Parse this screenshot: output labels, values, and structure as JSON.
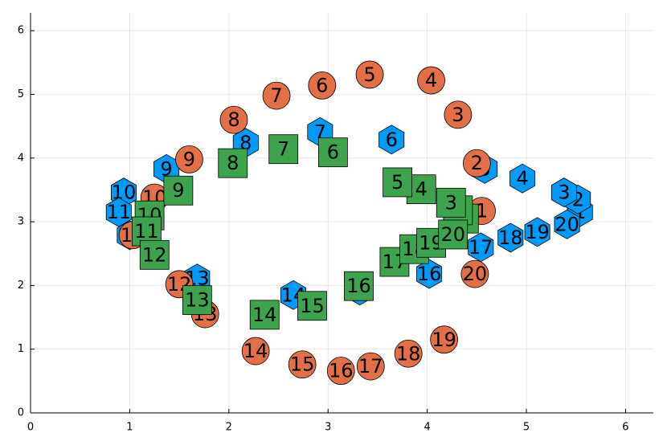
{
  "chart_data": {
    "type": "scatter",
    "xlim": [
      0,
      6.28
    ],
    "ylim": [
      0,
      6.28
    ],
    "xticks": [
      0,
      1,
      2,
      3,
      4,
      5,
      6
    ],
    "yticks": [
      0,
      1,
      2,
      3,
      4,
      5,
      6
    ],
    "grid": true,
    "labels": [
      "1",
      "2",
      "3",
      "4",
      "5",
      "6",
      "7",
      "8",
      "9",
      "10",
      "11",
      "12",
      "13",
      "14",
      "15",
      "16",
      "17",
      "18",
      "19",
      "20"
    ],
    "series": [
      {
        "color": "#009af9",
        "marker": "hexagon",
        "x": [
          5.54,
          5.52,
          5.38,
          4.96,
          4.58,
          3.64,
          2.92,
          2.17,
          1.37,
          0.94,
          0.89,
          1.0,
          1.68,
          2.65,
          3.32,
          4.02,
          4.54,
          4.84,
          5.11,
          5.41
        ],
        "values": [
          3.15,
          3.35,
          3.46,
          3.68,
          3.83,
          4.29,
          4.41,
          4.24,
          3.83,
          3.46,
          3.15,
          2.79,
          2.11,
          1.85,
          1.92,
          2.18,
          2.6,
          2.75,
          2.84,
          2.96
        ]
      },
      {
        "color": "#e26f46",
        "marker": "circle",
        "x": [
          4.55,
          4.5,
          4.31,
          4.04,
          3.42,
          2.94,
          2.48,
          2.05,
          1.6,
          1.25,
          1.03,
          1.5,
          1.76,
          2.27,
          2.74,
          3.13,
          3.43,
          3.81,
          4.17,
          4.48
        ],
        "values": [
          3.17,
          3.92,
          4.68,
          5.22,
          5.31,
          5.14,
          4.98,
          4.6,
          3.98,
          3.38,
          2.79,
          2.02,
          1.55,
          0.97,
          0.76,
          0.66,
          0.73,
          0.93,
          1.15,
          2.18
        ]
      },
      {
        "color": "#3da44d",
        "marker": "square",
        "x": [
          4.37,
          4.31,
          4.24,
          3.94,
          3.7,
          3.05,
          2.55,
          2.04,
          1.49,
          1.2,
          1.17,
          1.25,
          1.68,
          2.36,
          2.84,
          3.31,
          3.67,
          3.87,
          4.04,
          4.26
        ],
        "values": [
          3.05,
          3.18,
          3.3,
          3.51,
          3.62,
          4.09,
          4.14,
          3.92,
          3.49,
          3.1,
          2.85,
          2.48,
          1.77,
          1.54,
          1.68,
          1.99,
          2.37,
          2.57,
          2.67,
          2.8
        ]
      }
    ]
  }
}
